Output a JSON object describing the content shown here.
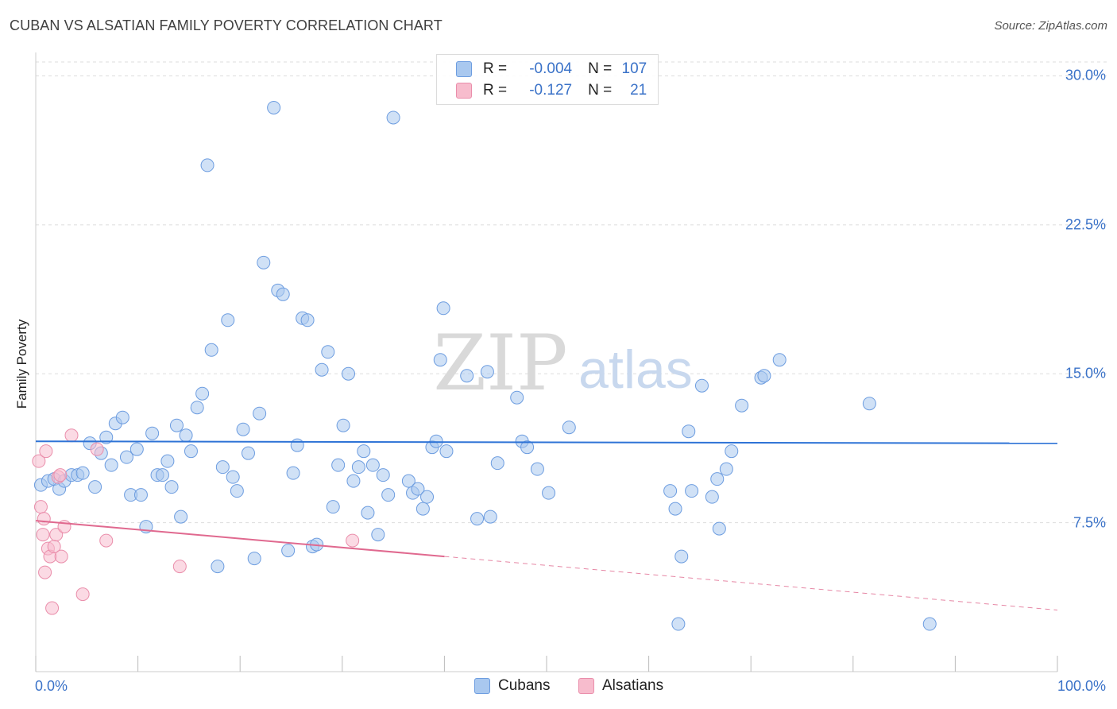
{
  "title": "CUBAN VS ALSATIAN FAMILY POVERTY CORRELATION CHART",
  "source": "Source: ZipAtlas.com",
  "watermark": {
    "left": "ZIP",
    "right": "atlas"
  },
  "colors": {
    "cubans_fill": "#a9c8ef",
    "cubans_stroke": "#6d9de0",
    "cubans_line": "#2e73d6",
    "alsatians_fill": "#f7bccd",
    "alsatians_stroke": "#ea8eab",
    "alsatians_line": "#e0698f",
    "axis_text": "#3a72c8",
    "grid": "#dddddd"
  },
  "legend_top": {
    "rows": [
      {
        "series": "cubans",
        "r_label": "R =",
        "r_value": "-0.004",
        "n_label": "N =",
        "n_value": "107"
      },
      {
        "series": "alsatians",
        "r_label": "R =",
        "r_value": "-0.127",
        "n_label": "N =",
        "n_value": "21"
      }
    ]
  },
  "legend_bottom": [
    {
      "series": "cubans",
      "label": "Cubans"
    },
    {
      "series": "alsatians",
      "label": "Alsatians"
    }
  ],
  "chart_data": {
    "type": "scatter",
    "title": "CUBAN VS ALSATIAN FAMILY POVERTY CORRELATION CHART",
    "xlabel": "",
    "ylabel": "Family Poverty",
    "xlim": [
      0,
      100
    ],
    "ylim": [
      0,
      30.7
    ],
    "x_tick_labels": [
      "0.0%",
      "100.0%"
    ],
    "y_ticks": [
      7.5,
      15.0,
      22.5,
      30.0
    ],
    "y_tick_labels": [
      "7.5%",
      "15.0%",
      "22.5%",
      "30.0%"
    ],
    "grid": true,
    "series": [
      {
        "name": "Cubans",
        "trend": {
          "x": [
            0,
            100
          ],
          "y": [
            11.6,
            11.5
          ]
        },
        "points": [
          [
            0.5,
            9.4
          ],
          [
            1.2,
            9.6
          ],
          [
            1.8,
            9.7
          ],
          [
            2.3,
            9.2
          ],
          [
            2.8,
            9.6
          ],
          [
            3.5,
            9.9
          ],
          [
            4.1,
            9.9
          ],
          [
            4.6,
            10.0
          ],
          [
            5.3,
            11.5
          ],
          [
            5.8,
            9.3
          ],
          [
            6.4,
            11.0
          ],
          [
            6.9,
            11.8
          ],
          [
            7.4,
            10.4
          ],
          [
            7.8,
            12.5
          ],
          [
            8.5,
            12.8
          ],
          [
            8.9,
            10.8
          ],
          [
            9.3,
            8.9
          ],
          [
            9.9,
            11.2
          ],
          [
            10.3,
            8.9
          ],
          [
            10.8,
            7.3
          ],
          [
            11.4,
            12.0
          ],
          [
            11.9,
            9.9
          ],
          [
            12.4,
            9.9
          ],
          [
            12.9,
            10.6
          ],
          [
            13.3,
            9.3
          ],
          [
            13.8,
            12.4
          ],
          [
            14.2,
            7.8
          ],
          [
            14.7,
            11.9
          ],
          [
            15.2,
            11.1
          ],
          [
            15.8,
            13.3
          ],
          [
            16.3,
            14.0
          ],
          [
            16.8,
            25.5
          ],
          [
            17.2,
            16.2
          ],
          [
            17.8,
            5.3
          ],
          [
            18.3,
            10.3
          ],
          [
            18.8,
            17.7
          ],
          [
            19.3,
            9.8
          ],
          [
            19.7,
            9.1
          ],
          [
            20.3,
            12.2
          ],
          [
            20.8,
            11.0
          ],
          [
            21.4,
            5.7
          ],
          [
            21.9,
            13.0
          ],
          [
            22.3,
            20.6
          ],
          [
            23.3,
            28.4
          ],
          [
            23.7,
            19.2
          ],
          [
            24.2,
            19.0
          ],
          [
            24.7,
            6.1
          ],
          [
            25.2,
            10.0
          ],
          [
            25.6,
            11.4
          ],
          [
            26.1,
            17.8
          ],
          [
            26.6,
            17.7
          ],
          [
            27.1,
            6.3
          ],
          [
            27.5,
            6.4
          ],
          [
            28.0,
            15.2
          ],
          [
            28.6,
            16.1
          ],
          [
            29.1,
            8.3
          ],
          [
            29.6,
            10.4
          ],
          [
            30.1,
            12.4
          ],
          [
            30.6,
            15.0
          ],
          [
            31.1,
            9.6
          ],
          [
            31.6,
            10.3
          ],
          [
            32.1,
            11.1
          ],
          [
            32.5,
            8.0
          ],
          [
            33.0,
            10.4
          ],
          [
            33.5,
            6.9
          ],
          [
            34.0,
            9.9
          ],
          [
            34.5,
            8.9
          ],
          [
            35.0,
            27.9
          ],
          [
            36.5,
            9.6
          ],
          [
            36.9,
            9.0
          ],
          [
            37.4,
            9.2
          ],
          [
            37.9,
            8.2
          ],
          [
            38.3,
            8.8
          ],
          [
            38.8,
            11.3
          ],
          [
            39.2,
            11.6
          ],
          [
            39.6,
            15.7
          ],
          [
            39.9,
            18.3
          ],
          [
            40.2,
            11.1
          ],
          [
            42.2,
            14.9
          ],
          [
            43.2,
            7.7
          ],
          [
            44.2,
            15.1
          ],
          [
            44.5,
            7.8
          ],
          [
            45.2,
            10.5
          ],
          [
            47.1,
            13.8
          ],
          [
            47.6,
            11.6
          ],
          [
            48.1,
            11.3
          ],
          [
            49.1,
            10.2
          ],
          [
            50.2,
            9.0
          ],
          [
            52.2,
            12.3
          ],
          [
            62.1,
            9.1
          ],
          [
            62.6,
            8.2
          ],
          [
            62.9,
            2.4
          ],
          [
            63.2,
            5.8
          ],
          [
            63.9,
            12.1
          ],
          [
            64.2,
            9.1
          ],
          [
            65.2,
            14.4
          ],
          [
            66.2,
            8.8
          ],
          [
            66.7,
            9.7
          ],
          [
            66.9,
            7.2
          ],
          [
            67.6,
            10.2
          ],
          [
            68.1,
            11.1
          ],
          [
            69.1,
            13.4
          ],
          [
            71.0,
            14.8
          ],
          [
            71.3,
            14.9
          ],
          [
            72.8,
            15.7
          ],
          [
            81.6,
            13.5
          ],
          [
            87.5,
            2.4
          ]
        ]
      },
      {
        "name": "Alsatians",
        "trend": {
          "x": [
            0,
            100
          ],
          "y": [
            7.6,
            3.1
          ]
        },
        "trend_solid_until_x": 40,
        "points": [
          [
            0.3,
            10.6
          ],
          [
            0.5,
            8.3
          ],
          [
            0.7,
            6.9
          ],
          [
            0.8,
            7.7
          ],
          [
            0.9,
            5.0
          ],
          [
            1.0,
            11.1
          ],
          [
            1.2,
            6.2
          ],
          [
            1.4,
            5.8
          ],
          [
            1.6,
            3.2
          ],
          [
            1.8,
            6.3
          ],
          [
            2.0,
            6.9
          ],
          [
            2.2,
            9.8
          ],
          [
            2.5,
            5.8
          ],
          [
            2.8,
            7.3
          ],
          [
            3.5,
            11.9
          ],
          [
            4.6,
            3.9
          ],
          [
            6.0,
            11.2
          ],
          [
            6.9,
            6.6
          ],
          [
            14.1,
            5.3
          ],
          [
            31.0,
            6.6
          ],
          [
            2.4,
            9.9
          ]
        ]
      }
    ]
  }
}
